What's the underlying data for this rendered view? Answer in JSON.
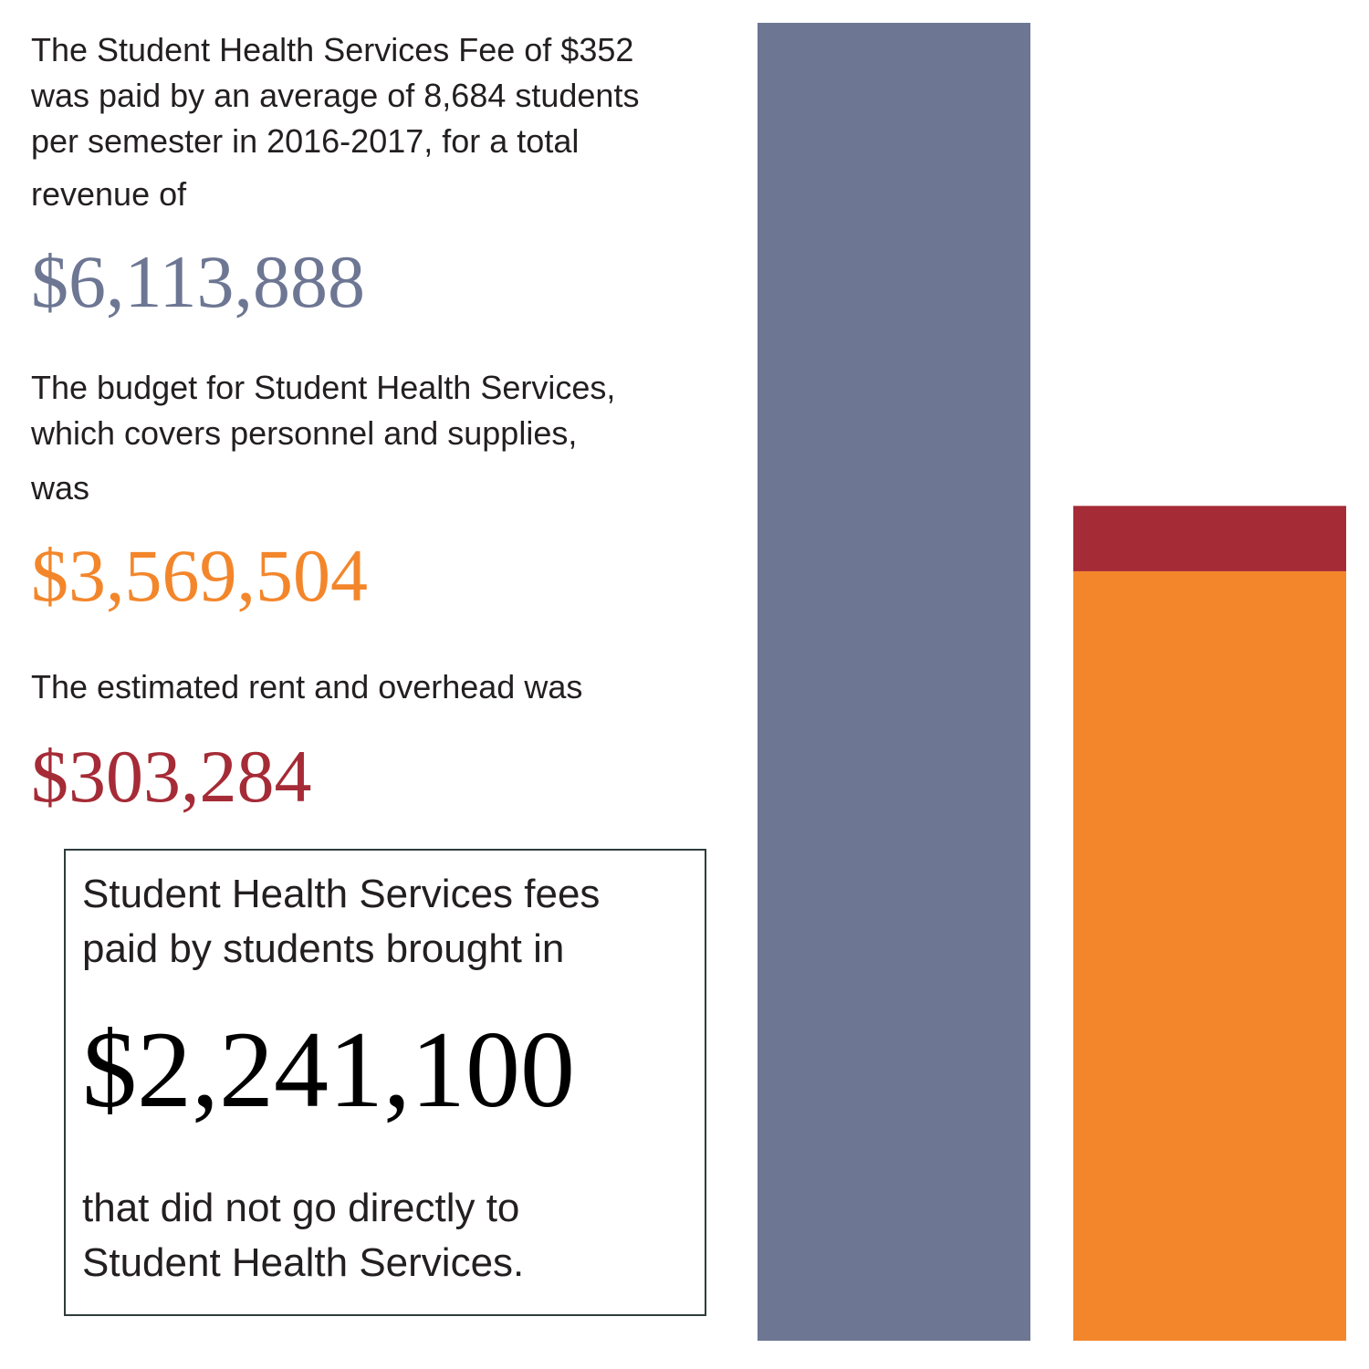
{
  "intro": {
    "paragraph_lines": [
      "The Student Health Services Fee of $352",
      "was paid by an average of 8,684 students",
      "per semester in 2016-2017, for a total",
      "revenue of"
    ]
  },
  "revenue": {
    "amount": "$6,113,888",
    "color": "#6d7793"
  },
  "budget": {
    "paragraph_lines": [
      "The budget for Student Health Services,",
      "which covers personnel and supplies,",
      "was"
    ],
    "amount": "$3,569,504",
    "color": "#f3862b"
  },
  "rent": {
    "paragraph": "The estimated rent and overhead was",
    "amount": "$303,284",
    "color": "#a52b36"
  },
  "callout": {
    "text_before_lines": [
      "Student Health Services fees",
      "paid by students brought in"
    ],
    "amount": "$2,241,100",
    "text_after_lines": [
      "that did not go directly to",
      "Student Health Services."
    ],
    "border_color": "#2f3d3b"
  },
  "chart_data": {
    "type": "bar",
    "stacked": true,
    "categories": [
      "",
      ""
    ],
    "series": [
      {
        "values": [
          6113888,
          0
        ],
        "color": "#6d7793"
      },
      {
        "values": [
          0,
          3569504
        ],
        "color": "#f3862b"
      },
      {
        "values": [
          0,
          303284
        ],
        "color": "#a52b36"
      }
    ],
    "ylim": [
      0,
      6113888
    ],
    "grid": false,
    "title": "",
    "xlabel": "",
    "ylabel": ""
  }
}
